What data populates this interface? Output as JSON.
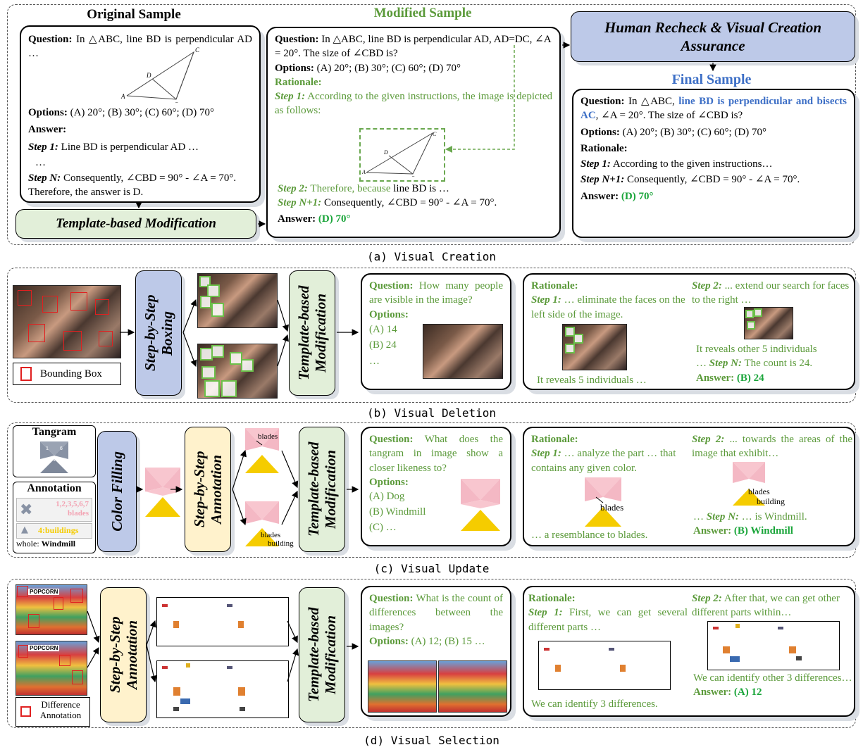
{
  "a": {
    "original_title": "Original Sample",
    "modified_title": "Modified Sample",
    "final_title": "Final Sample",
    "human_recheck": "Human Recheck & Visual Creation Assurance",
    "template_mod": "Template-based Modification",
    "orig": {
      "q_label": "Question:",
      "q_text": "In △ABC, line BD is perpendicular AD …",
      "options_label": "Options:",
      "options_text": "(A) 20°; (B) 30°; (C) 60°; (D) 70°",
      "answer_label": "Answer:",
      "step1_label": "Step 1:",
      "step1_text": "Line BD is perpendicular AD …",
      "ellipsis": "…",
      "stepn_label": "Step N:",
      "stepn_text": "Consequently, ∠CBD = 90° - ∠A = 70°. Therefore, the answer is D."
    },
    "mod": {
      "q_label": "Question:",
      "q_text": "In △ABC, line BD is perpendicular AD, AD=DC, ∠A = 20°. The size of ∠CBD is?",
      "options_label": "Options:",
      "options_text": "(A) 20°; (B) 30°; (C) 60°; (D) 70°",
      "rationale_label": "Rationale:",
      "step1_label": "Step 1:",
      "step1_text": "According to the given instructions, the image is depicted as follows:",
      "step2_label": "Step 2:",
      "step2_text": "Therefore, because",
      "step2_rest": "line BD is …",
      "stepn_label": "Step N+1:",
      "stepn_text": "Consequently, ∠CBD = 90° - ∠A = 70°.",
      "answer_label": "Answer:",
      "answer_value": "(D) 70°"
    },
    "final": {
      "q_label": "Question:",
      "q_pre": "In △ABC,",
      "q_highlight": "line BD is perpendicular and bisects AC",
      "q_post": ", ∠A = 20°. The size of ∠CBD is?",
      "options_label": "Options:",
      "options_text": "(A) 20°; (B) 30°; (C) 60°; (D) 70°",
      "rationale_label": "Rationale:",
      "step1_label": "Step 1:",
      "step1_text": "According to the given instructions…",
      "stepn_label": "Step N+1:",
      "stepn_text": "Consequently, ∠CBD = 90° - ∠A = 70°.",
      "answer_label": "Answer:",
      "answer_value": "(D) 70°"
    },
    "triangle_labels": [
      "A",
      "B",
      "C",
      "D"
    ],
    "caption": "(a) Visual Creation"
  },
  "b": {
    "legend": "Bounding Box",
    "boxing": "Step-by-Step Boxing",
    "template_mod": "Template-based Modification",
    "q_label": "Question:",
    "q_text": "How many people are visible in the image?",
    "options_label": "Options:",
    "options": [
      "(A) 14",
      "(B) 24",
      "…"
    ],
    "rationale_label": "Rationale:",
    "step1_label": "Step 1:",
    "step1_text": "… eliminate the faces on the left side of the image.",
    "reveal1": "It reveals 5 individuals …",
    "step2_label": "Step 2:",
    "step2_text": "... extend our search for faces to the right …",
    "reveal2": "It reveals other 5 individuals",
    "stepn_pre": "…",
    "stepn_label": "Step N:",
    "stepn_text": "The count is 24.",
    "answer_label": "Answer:",
    "answer_value": "(B) 24",
    "caption": "(b) Visual Deletion"
  },
  "c": {
    "tangram_title": "Tangram",
    "tangram_numbers": [
      "1",
      "2",
      "3",
      "4",
      "5",
      "6",
      "7"
    ],
    "annotation_title": "Annotation",
    "ann1": "1,2,3,5,6,7 blades",
    "ann2": "4:buildings",
    "whole_label": "whole:",
    "whole_value": "Windmill",
    "color_filling": "Color Filling",
    "annotation": "Step-by-Step Annotation",
    "template_mod": "Template-based Modification",
    "blades": "blades",
    "building": "building",
    "q_label": "Question:",
    "q_text": "What does the tangram in image show a closer likeness to?",
    "options_label": "Options:",
    "options": [
      "(A) Dog",
      "(B) Windmill",
      "(C) …"
    ],
    "rationale_label": "Rationale:",
    "step1_label": "Step 1:",
    "step1_text": "… analyze the part … that contains any given color.",
    "resemblance": "… a resemblance to blades.",
    "step2_label": "Step 2:",
    "step2_text": "... towards the areas of the image that exhibit…",
    "stepn_pre": "…",
    "stepn_label": "Step N:",
    "stepn_text": "… is Windmill.",
    "answer_label": "Answer:",
    "answer_value": "(B) Windmill",
    "caption": "(c) Visual Update"
  },
  "d": {
    "popcorn": "POPCORN",
    "legend": "Difference Annotation",
    "annotation": "Step-by-Step Annotation",
    "template_mod": "Template-based Modification",
    "q_label": "Question:",
    "q_text": "What is the count of differences between the images?",
    "options_label": "Options:",
    "options_text": "(A) 12; (B) 15 …",
    "rationale_label": "Rationale:",
    "step1_label": "Step 1:",
    "step1_text": "First, we can get several different parts …",
    "identify1": "We can identify 3 differences.",
    "step2_label": "Step 2:",
    "step2_text": "After that, we can get other different parts within…",
    "identify2": "We can identify other 3 differences…",
    "answer_label": "Answer:",
    "answer_value": "(A) 12",
    "caption": "(d) Visual Selection"
  },
  "colors": {
    "green_text": "#5b9a3a",
    "answer_green": "#1aa53a",
    "highlight_blue": "#3d6fc6",
    "pill_green": "#e2efd9",
    "pill_blue": "#bdc9e8",
    "pill_yellow": "#fff2cc",
    "tangram_pink": "#f8c6cf",
    "tangram_yellow": "#f5cc00"
  }
}
